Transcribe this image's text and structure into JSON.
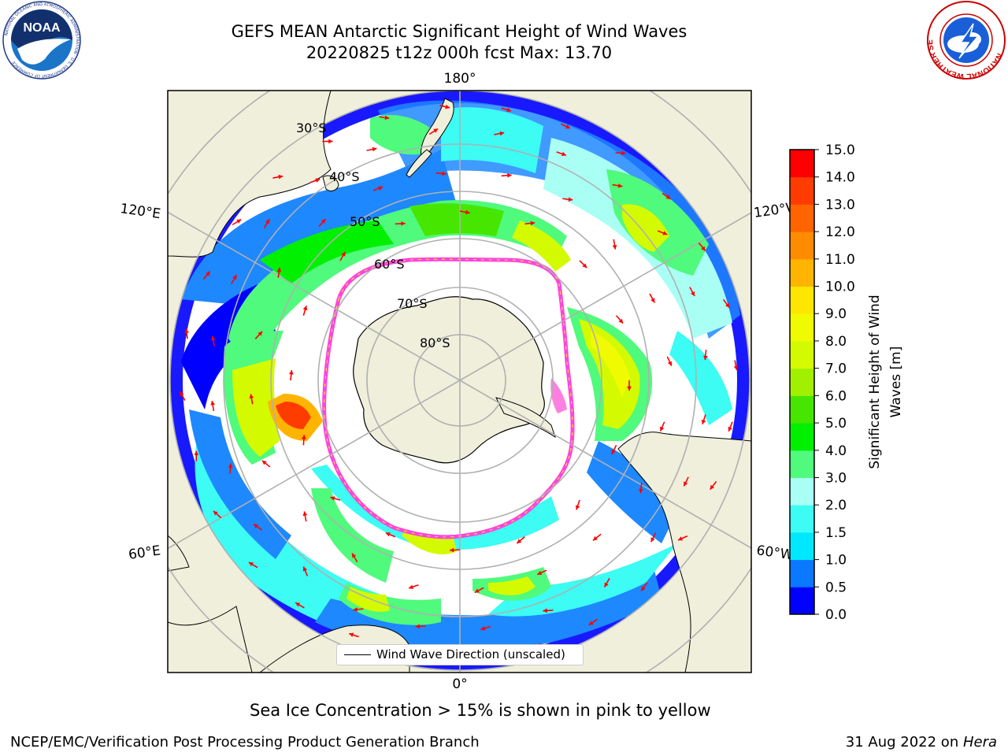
{
  "header": {
    "title_line1": "GEFS MEAN Antarctic Significant Height of Wind Waves",
    "title_line2": "20220825 t12z 000h fcst   Max: 13.70"
  },
  "logos": {
    "left": {
      "name": "NOAA",
      "text": "NOAA",
      "ring_text": "NATIONAL OCEANIC AND ATMOSPHERIC ADMINISTRATION · U.S. DEPARTMENT OF COMMERCE"
    },
    "right": {
      "name": "National Weather Service",
      "ring_text": "NATIONAL WEATHER SERVICE"
    }
  },
  "map": {
    "projection": "south-polar-stereographic",
    "longitude_labels": {
      "top": "180°",
      "bottom": "0°",
      "left_upper": "120°E",
      "left_lower": "60°E",
      "right_upper": "120°W",
      "right_lower": "60°W"
    },
    "latitude_labels": [
      "30°S",
      "40°S",
      "50°S",
      "60°S",
      "70°S",
      "80°S"
    ],
    "colors": {
      "land": "#efefdc",
      "ocean_nodata": "#ffffff",
      "ice_edge": "#ff44dd",
      "arrows": "#ff0000",
      "grid": "#b0b0b0"
    }
  },
  "legend": {
    "label": "Wind Wave Direction (unscaled)"
  },
  "colorbar": {
    "label": "Significant Height of Wind Waves [m]",
    "ticks": [
      "0.0",
      "0.5",
      "1.0",
      "1.5",
      "2.0",
      "3.0",
      "4.0",
      "5.0",
      "6.0",
      "7.0",
      "8.0",
      "9.0",
      "10.0",
      "11.0",
      "12.0",
      "13.0",
      "14.0",
      "15.0"
    ],
    "colors": [
      "#0000ff",
      "#0a78ff",
      "#00e8ff",
      "#3cfcf4",
      "#aafff4",
      "#50fa7c",
      "#00f000",
      "#46e600",
      "#a0f000",
      "#d4fa00",
      "#f0fa00",
      "#ffe600",
      "#ffb400",
      "#ff8c00",
      "#ff6400",
      "#ff3c00",
      "#ff0000"
    ]
  },
  "captions": {
    "ice_note": "Sea Ice Concentration > 15% is shown in pink to yellow",
    "footer_left": "NCEP/EMC/Verification Post Processing Product Generation Branch",
    "footer_right_prefix": "31 Aug 2022 on ",
    "footer_right_host": "Hera"
  }
}
